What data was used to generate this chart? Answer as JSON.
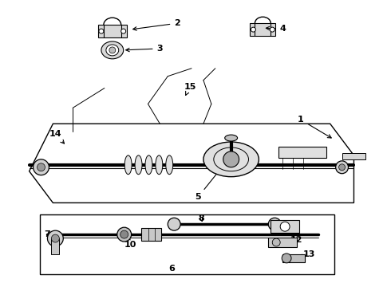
{
  "background_color": "#ffffff",
  "line_color": "#000000",
  "label_color": "#000000",
  "figsize": [
    4.9,
    3.6
  ],
  "dpi": 100
}
